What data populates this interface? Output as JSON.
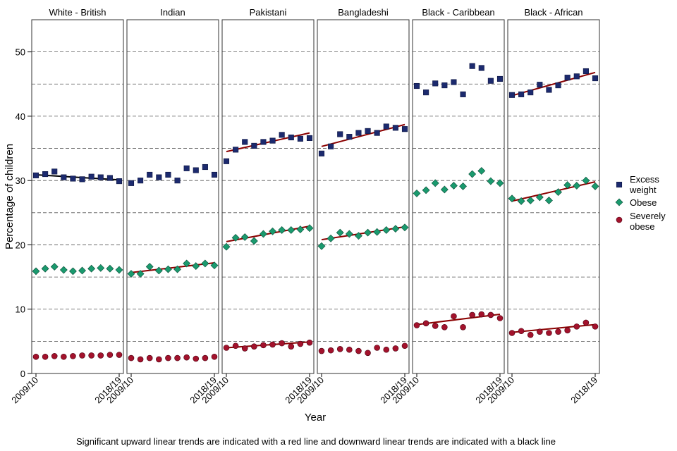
{
  "chart_data": {
    "type": "scatter",
    "facet_labels": [
      "White - British",
      "Indian",
      "Pakistani",
      "Bangladeshi",
      "Black - Caribbean",
      "Black - African"
    ],
    "x": [
      "2009/10",
      "2010/11",
      "2011/12",
      "2012/13",
      "2013/14",
      "2014/15",
      "2015/16",
      "2016/17",
      "2017/18",
      "2018/19"
    ],
    "x_tick_labels": [
      "2009/10",
      "2018/19"
    ],
    "xlabel": "Year",
    "ylabel": "Percentage of children",
    "ylim": [
      0,
      55
    ],
    "y_ticks": [
      0,
      10,
      20,
      30,
      40,
      50
    ],
    "grid": "dashed horizontal every 5",
    "legend": {
      "placement": "right",
      "entries": [
        {
          "key": "excess",
          "label_lines": [
            "Excess",
            "weight"
          ],
          "marker": "square",
          "color": "#1c2a6e"
        },
        {
          "key": "obese",
          "label_lines": [
            "Obese"
          ],
          "marker": "diamond",
          "color": "#1a9a6e"
        },
        {
          "key": "severe",
          "label_lines": [
            "Severely",
            "obese"
          ],
          "marker": "circle",
          "color": "#a3122c"
        }
      ]
    },
    "trend_colors": {
      "up": "#8b0000",
      "down": "#000000"
    },
    "facets": [
      {
        "name": "White - British",
        "excess": [
          30.8,
          31.0,
          31.4,
          30.5,
          30.3,
          30.2,
          30.6,
          30.5,
          30.4,
          29.9
        ],
        "obese": [
          15.9,
          16.3,
          16.6,
          16.1,
          15.9,
          16.0,
          16.3,
          16.4,
          16.3,
          16.1
        ],
        "severe": [
          2.6,
          2.6,
          2.7,
          2.6,
          2.7,
          2.8,
          2.8,
          2.8,
          2.9,
          2.9
        ],
        "trends": {
          "excess": {
            "dir": "down",
            "start": 30.9,
            "end": 30.1
          }
        }
      },
      {
        "name": "Indian",
        "excess": [
          29.6,
          30.0,
          30.9,
          30.5,
          30.9,
          30.0,
          31.9,
          31.6,
          32.1,
          30.9
        ],
        "obese": [
          15.5,
          15.5,
          16.6,
          16.0,
          16.2,
          16.2,
          17.1,
          16.7,
          17.1,
          16.8
        ],
        "severe": [
          2.4,
          2.2,
          2.4,
          2.2,
          2.4,
          2.4,
          2.5,
          2.3,
          2.4,
          2.6
        ],
        "trends": {
          "obese": {
            "dir": "up",
            "start": 15.7,
            "end": 17.2
          }
        }
      },
      {
        "name": "Pakistani",
        "excess": [
          33.0,
          34.8,
          36.0,
          35.4,
          36.0,
          36.2,
          37.1,
          36.7,
          36.5,
          36.6
        ],
        "obese": [
          19.7,
          21.1,
          21.2,
          20.6,
          21.7,
          22.1,
          22.3,
          22.3,
          22.4,
          22.6
        ],
        "severe": [
          4.0,
          4.3,
          3.9,
          4.2,
          4.4,
          4.5,
          4.7,
          4.2,
          4.6,
          4.8
        ],
        "trends": {
          "excess": {
            "dir": "up",
            "start": 34.5,
            "end": 37.4
          },
          "obese": {
            "dir": "up",
            "start": 20.5,
            "end": 22.9
          },
          "severe": {
            "dir": "up",
            "start": 4.0,
            "end": 4.9
          }
        }
      },
      {
        "name": "Bangladeshi",
        "excess": [
          34.2,
          35.3,
          37.2,
          36.8,
          37.4,
          37.7,
          37.4,
          38.4,
          38.2,
          38.0
        ],
        "obese": [
          19.8,
          21.0,
          21.9,
          21.7,
          21.4,
          21.9,
          22.0,
          22.3,
          22.5,
          22.7
        ],
        "severe": [
          3.5,
          3.6,
          3.8,
          3.7,
          3.5,
          3.2,
          4.0,
          3.7,
          3.9,
          4.3
        ],
        "trends": {
          "excess": {
            "dir": "up",
            "start": 35.3,
            "end": 38.7
          },
          "obese": {
            "dir": "up",
            "start": 20.8,
            "end": 22.8
          }
        }
      },
      {
        "name": "Black - Caribbean",
        "excess": [
          44.7,
          43.7,
          45.1,
          44.8,
          45.3,
          43.4,
          47.8,
          47.5,
          45.5,
          45.8
        ],
        "obese": [
          28.0,
          28.5,
          29.6,
          28.6,
          29.2,
          29.1,
          31.0,
          31.5,
          29.9,
          29.6
        ],
        "severe": [
          7.5,
          7.8,
          7.4,
          7.2,
          8.9,
          7.2,
          9.1,
          9.2,
          9.1,
          8.6
        ],
        "trends": {
          "severe": {
            "dir": "up",
            "start": 7.6,
            "end": 9.2
          }
        }
      },
      {
        "name": "Black - African",
        "excess": [
          43.3,
          43.4,
          43.7,
          44.9,
          44.1,
          44.8,
          46.0,
          46.2,
          47.0,
          45.9
        ],
        "obese": [
          27.2,
          26.8,
          26.9,
          27.4,
          26.9,
          28.2,
          29.3,
          29.2,
          30.0,
          29.1
        ],
        "severe": [
          6.3,
          6.6,
          6.0,
          6.5,
          6.3,
          6.5,
          6.7,
          7.3,
          7.9,
          7.3
        ],
        "trends": {
          "excess": {
            "dir": "up",
            "start": 43.2,
            "end": 46.8
          },
          "obese": {
            "dir": "up",
            "start": 26.8,
            "end": 29.8
          },
          "severe": {
            "dir": "up",
            "start": 6.4,
            "end": 7.6
          }
        }
      }
    ],
    "caption": "Significant upward linear trends are indicated with a red line and downward linear trends are indicated with a black line"
  }
}
